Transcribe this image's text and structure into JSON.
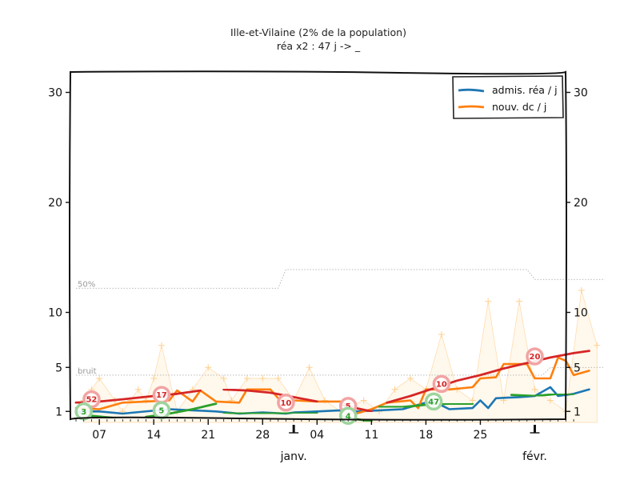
{
  "chart_data": {
    "type": "line",
    "title": "Ille-et-Vilaine (2% de la population)",
    "subtitle": "réa x2 : 47 j -> _",
    "ylim": [
      0,
      32
    ],
    "y_ticks": [
      1,
      5,
      10,
      20,
      30
    ],
    "y_tick_labels": [
      "1",
      "5",
      "10",
      "20",
      "30"
    ],
    "x_range_days": [
      0,
      68
    ],
    "x_ticks": [
      {
        "day": 3,
        "label": "07"
      },
      {
        "day": 10,
        "label": "14"
      },
      {
        "day": 17,
        "label": "21"
      },
      {
        "day": 24,
        "label": "28"
      },
      {
        "day": 31,
        "label": "04"
      },
      {
        "day": 38,
        "label": "11"
      },
      {
        "day": 45,
        "label": "18"
      },
      {
        "day": 52,
        "label": "25"
      }
    ],
    "month_labels": [
      {
        "day": 28,
        "label": "janv."
      },
      {
        "day": 59,
        "label": "févr."
      }
    ],
    "reference_lines": [
      {
        "label": "50%",
        "segments": [
          [
            0,
            12.2
          ],
          [
            26,
            12.2
          ],
          [
            27,
            13.9
          ],
          [
            58,
            13.9
          ],
          [
            59,
            13.0
          ],
          [
            68,
            13.0
          ]
        ]
      },
      {
        "label": "bruit",
        "segments": [
          [
            0,
            4.3
          ],
          [
            60,
            4.3
          ],
          [
            61,
            5.0
          ],
          [
            68,
            5.0
          ]
        ]
      }
    ],
    "raw_points": [
      [
        1,
        2
      ],
      [
        2,
        3
      ],
      [
        3,
        4
      ],
      [
        5,
        2
      ],
      [
        6,
        1
      ],
      [
        7,
        2
      ],
      [
        8,
        3
      ],
      [
        9,
        2
      ],
      [
        10,
        4
      ],
      [
        11,
        7
      ],
      [
        13,
        1
      ],
      [
        15,
        3
      ],
      [
        17,
        5
      ],
      [
        19,
        4
      ],
      [
        20,
        2
      ],
      [
        22,
        4
      ],
      [
        24,
        4
      ],
      [
        26,
        4
      ],
      [
        28,
        2
      ],
      [
        30,
        5
      ],
      [
        32,
        2
      ],
      [
        34,
        1
      ],
      [
        37,
        2
      ],
      [
        39,
        1
      ],
      [
        41,
        3
      ],
      [
        43,
        4
      ],
      [
        45,
        3
      ],
      [
        47,
        8
      ],
      [
        49,
        3
      ],
      [
        51,
        2
      ],
      [
        53,
        11
      ],
      [
        55,
        2
      ],
      [
        57,
        11
      ],
      [
        59,
        3
      ],
      [
        61,
        2
      ],
      [
        63,
        1
      ],
      [
        65,
        12
      ],
      [
        67,
        7
      ]
    ],
    "series": [
      {
        "name": "admis. réa / j",
        "color": "#1f77b4",
        "show_in_legend": true,
        "points": [
          [
            0,
            1.0
          ],
          [
            3,
            1.0
          ],
          [
            6,
            0.8
          ],
          [
            12,
            1.2
          ],
          [
            15,
            1.1
          ],
          [
            18,
            1.0
          ],
          [
            21,
            0.8
          ],
          [
            24,
            0.9
          ],
          [
            27,
            0.8
          ],
          [
            28,
            0.9
          ],
          [
            31,
            1.0
          ],
          [
            34,
            1.1
          ],
          [
            36,
            1.0
          ],
          [
            39,
            1.1
          ],
          [
            42,
            1.2
          ],
          [
            45,
            1.8
          ],
          [
            46,
            1.9
          ],
          [
            48,
            1.2
          ],
          [
            51,
            1.3
          ],
          [
            52,
            2.0
          ],
          [
            53,
            1.3
          ],
          [
            54,
            2.2
          ],
          [
            57,
            2.3
          ],
          [
            59,
            2.4
          ],
          [
            61,
            3.2
          ],
          [
            62,
            2.4
          ],
          [
            64,
            2.6
          ],
          [
            66,
            3.0
          ]
        ]
      },
      {
        "name": "nouv. dc / j",
        "color": "#ff7f0e",
        "show_in_legend": true,
        "points": [
          [
            0,
            1.3
          ],
          [
            3,
            1.2
          ],
          [
            6,
            1.8
          ],
          [
            9,
            1.9
          ],
          [
            12,
            2.0
          ],
          [
            13,
            2.9
          ],
          [
            15,
            1.9
          ],
          [
            16,
            2.9
          ],
          [
            18,
            1.9
          ],
          [
            21,
            1.8
          ],
          [
            22,
            3.0
          ],
          [
            25,
            3.0
          ],
          [
            26,
            2.2
          ],
          [
            28,
            2.0
          ],
          [
            31,
            1.9
          ],
          [
            34,
            1.9
          ],
          [
            35,
            1.5
          ],
          [
            36,
            0.8
          ],
          [
            38,
            1.2
          ],
          [
            40,
            1.8
          ],
          [
            43,
            2.0
          ],
          [
            44,
            1.3
          ],
          [
            45,
            3.0
          ],
          [
            48,
            3.0
          ],
          [
            51,
            3.2
          ],
          [
            52,
            4.0
          ],
          [
            54,
            4.1
          ],
          [
            55,
            5.3
          ],
          [
            58,
            5.3
          ],
          [
            59,
            4.0
          ],
          [
            61,
            4.0
          ],
          [
            62,
            5.9
          ],
          [
            63,
            5.6
          ],
          [
            64,
            4.3
          ],
          [
            66,
            4.7
          ]
        ]
      },
      {
        "name": "trend dc",
        "color": "#d62728",
        "show_in_legend": false,
        "points_list": [
          [
            [
              0,
              1.8
            ],
            [
              3,
              1.9
            ],
            [
              6,
              2.1
            ],
            [
              10,
              2.4
            ],
            [
              13,
              2.6
            ],
            [
              16,
              2.9
            ]
          ],
          [
            [
              19,
              3.0
            ],
            [
              22,
              2.9
            ],
            [
              25,
              2.7
            ],
            [
              28,
              2.3
            ],
            [
              31,
              1.9
            ]
          ],
          [
            [
              34,
              1.6
            ],
            [
              36,
              1.3
            ],
            [
              38,
              1.0
            ]
          ],
          [
            [
              40,
              1.8
            ],
            [
              43,
              2.4
            ],
            [
              46,
              3.1
            ],
            [
              49,
              3.8
            ],
            [
              52,
              4.3
            ],
            [
              55,
              4.9
            ],
            [
              58,
              5.4
            ],
            [
              61,
              5.9
            ],
            [
              64,
              6.3
            ],
            [
              66,
              6.5
            ]
          ]
        ]
      },
      {
        "name": "trend réa",
        "color": "#2ca02c",
        "show_in_legend": false,
        "points_list": [
          [
            [
              0,
              0.9
            ],
            [
              2,
              0.6
            ],
            [
              5,
              0.4
            ]
          ],
          [
            [
              9,
              0.5
            ],
            [
              12,
              0.8
            ],
            [
              15,
              1.2
            ],
            [
              18,
              1.7
            ]
          ],
          [
            [
              19,
              0.9
            ],
            [
              22,
              0.8
            ],
            [
              25,
              0.8
            ],
            [
              28,
              0.9
            ],
            [
              31,
              0.9
            ]
          ],
          [
            [
              34,
              0.6
            ],
            [
              36,
              0.3
            ],
            [
              38,
              0.1
            ]
          ],
          [
            [
              39,
              1.4
            ],
            [
              42,
              1.4
            ],
            [
              45,
              1.6
            ],
            [
              48,
              1.7
            ],
            [
              51,
              1.7
            ]
          ],
          [
            [
              56,
              2.5
            ],
            [
              59,
              2.4
            ],
            [
              62,
              2.6
            ],
            [
              64,
              2.6
            ]
          ]
        ]
      }
    ],
    "annotations": [
      {
        "day": 2,
        "value": 2.1,
        "label": "52",
        "kind": "red"
      },
      {
        "day": 11,
        "value": 2.5,
        "label": "17",
        "kind": "red"
      },
      {
        "day": 27,
        "value": 1.8,
        "label": "10",
        "kind": "red"
      },
      {
        "day": 35,
        "value": 1.5,
        "label": "5",
        "kind": "red"
      },
      {
        "day": 47,
        "value": 3.5,
        "label": "10",
        "kind": "red"
      },
      {
        "day": 59,
        "value": 6.0,
        "label": "20",
        "kind": "red"
      },
      {
        "day": 1,
        "value": 1.0,
        "label": "3",
        "kind": "green"
      },
      {
        "day": 11,
        "value": 1.1,
        "label": "5",
        "kind": "green"
      },
      {
        "day": 35,
        "value": 0.6,
        "label": "4",
        "kind": "green"
      },
      {
        "day": 46,
        "value": 1.9,
        "label": "47",
        "kind": "green"
      }
    ],
    "legend_position": "top-right",
    "grid": false
  }
}
